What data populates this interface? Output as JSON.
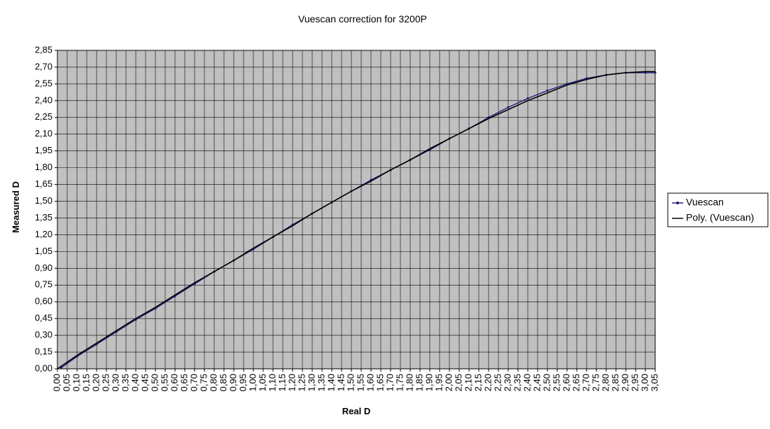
{
  "chart_data": {
    "type": "line",
    "title": "Vuescan correction for 3200P",
    "xlabel": "Real D",
    "ylabel": "Measured D",
    "xlim": [
      0,
      3.05
    ],
    "ylim": [
      0,
      2.85
    ],
    "x_step": 0.05,
    "y_step": 0.15,
    "decimal_separator": ",",
    "grid": true,
    "plot_background": "#c0c0c0",
    "legend_position": "right",
    "x_tick_labels": [
      "0,00",
      "0,05",
      "0,10",
      "0,15",
      "0,20",
      "0,25",
      "0,30",
      "0,35",
      "0,40",
      "0,45",
      "0,50",
      "0,55",
      "0,60",
      "0,65",
      "0,70",
      "0,75",
      "0,80",
      "0,85",
      "0,90",
      "0,95",
      "1,00",
      "1,05",
      "1,10",
      "1,15",
      "1,20",
      "1,25",
      "1,30",
      "1,35",
      "1,40",
      "1,45",
      "1,50",
      "1,55",
      "1,60",
      "1,65",
      "1,70",
      "1,75",
      "1,80",
      "1,85",
      "1,90",
      "1,95",
      "2,00",
      "2,05",
      "2,10",
      "2,15",
      "2,20",
      "2,25",
      "2,30",
      "2,35",
      "2,40",
      "2,45",
      "2,50",
      "2,55",
      "2,60",
      "2,65",
      "2,70",
      "2,75",
      "2,80",
      "2,85",
      "2,90",
      "2,95",
      "3,00",
      "3,05"
    ],
    "y_tick_labels": [
      "0,00",
      "0,15",
      "0,30",
      "0,45",
      "0,60",
      "0,75",
      "0,90",
      "1,05",
      "1,20",
      "1,35",
      "1,50",
      "1,65",
      "1,80",
      "1,95",
      "2,10",
      "2,25",
      "2,40",
      "2,55",
      "2,70",
      "2,85"
    ],
    "series": [
      {
        "name": "Vuescan",
        "color": "#1f1f7a",
        "marker": "dot",
        "x": [
          0.02,
          0.1,
          0.2,
          0.3,
          0.4,
          0.5,
          0.6,
          0.7,
          0.8,
          0.9,
          1.0,
          1.1,
          1.2,
          1.3,
          1.4,
          1.5,
          1.6,
          1.7,
          1.8,
          1.9,
          2.0,
          2.1,
          2.2,
          2.3,
          2.4,
          2.5,
          2.6,
          2.7,
          2.8,
          2.9,
          3.0,
          3.05
        ],
        "y": [
          0.01,
          0.11,
          0.22,
          0.33,
          0.44,
          0.54,
          0.65,
          0.76,
          0.87,
          0.97,
          1.07,
          1.18,
          1.29,
          1.39,
          1.49,
          1.59,
          1.69,
          1.78,
          1.87,
          1.96,
          2.06,
          2.15,
          2.25,
          2.34,
          2.42,
          2.49,
          2.55,
          2.6,
          2.63,
          2.65,
          2.65,
          2.65
        ]
      },
      {
        "name": "Poly. (Vuescan)",
        "color": "#000000",
        "marker": "none",
        "x": [
          0.0,
          0.1,
          0.2,
          0.3,
          0.4,
          0.5,
          0.6,
          0.7,
          0.8,
          0.9,
          1.0,
          1.1,
          1.2,
          1.3,
          1.4,
          1.5,
          1.6,
          1.7,
          1.8,
          1.9,
          2.0,
          2.1,
          2.2,
          2.3,
          2.4,
          2.5,
          2.6,
          2.7,
          2.8,
          2.9,
          3.0,
          3.05
        ],
        "y": [
          0.0,
          0.12,
          0.23,
          0.34,
          0.45,
          0.55,
          0.66,
          0.77,
          0.87,
          0.97,
          1.08,
          1.18,
          1.28,
          1.39,
          1.49,
          1.59,
          1.68,
          1.78,
          1.87,
          1.97,
          2.06,
          2.15,
          2.24,
          2.32,
          2.4,
          2.47,
          2.54,
          2.59,
          2.63,
          2.65,
          2.66,
          2.66
        ]
      }
    ]
  }
}
